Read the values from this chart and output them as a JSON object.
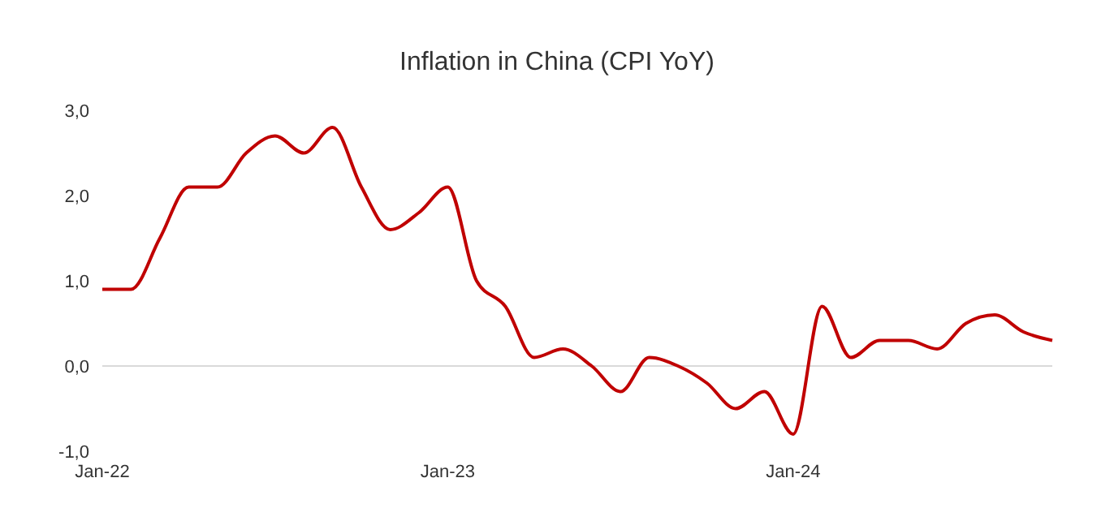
{
  "chart_data": {
    "type": "line",
    "title": "Inflation in China (CPI YoY)",
    "categories": [
      "Jan-22",
      null,
      null,
      null,
      null,
      null,
      null,
      null,
      null,
      null,
      null,
      null,
      "Jan-23",
      null,
      null,
      null,
      null,
      null,
      null,
      null,
      null,
      null,
      null,
      null,
      "Jan-24",
      null,
      null,
      null,
      null,
      null,
      null,
      null,
      null,
      null
    ],
    "series": [
      {
        "color": "#c00000",
        "values": [
          0.9,
          0.9,
          1.5,
          2.1,
          2.1,
          2.5,
          2.7,
          2.5,
          2.8,
          2.1,
          1.6,
          1.8,
          2.1,
          1.0,
          0.7,
          0.1,
          0.2,
          0.0,
          -0.3,
          0.1,
          0.0,
          -0.2,
          -0.5,
          -0.3,
          -0.8,
          0.7,
          0.1,
          0.3,
          0.3,
          0.2,
          0.5,
          0.6,
          0.4,
          0.3
        ]
      }
    ],
    "ylim": [
      -1,
      3
    ],
    "yticks": [
      {
        "value": -1,
        "label": "-1,0"
      },
      {
        "value": 0,
        "label": "0,0"
      },
      {
        "value": 1,
        "label": "1,0"
      },
      {
        "value": 2,
        "label": "2,0"
      },
      {
        "value": 3,
        "label": "3,0"
      }
    ],
    "ref_lines": [
      {
        "axis": "y",
        "value": 0,
        "color": "#d9d9d9"
      }
    ],
    "grid": false,
    "legend": false,
    "marker": "none",
    "line_style": "solid"
  }
}
